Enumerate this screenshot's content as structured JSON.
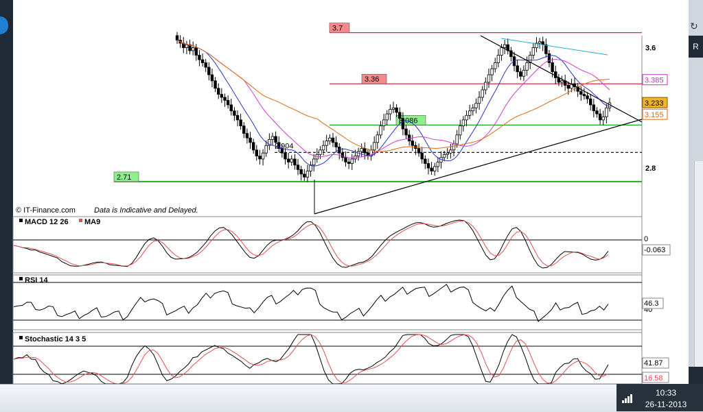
{
  "window": {
    "left_icon": "refresh-icon",
    "right_badge": "R"
  },
  "taskbar": {
    "time": "10:33",
    "date": "26-11-2013",
    "signal_icon": "network-signal-icon"
  },
  "chart_data": {
    "type": "candlestick",
    "copyright": "© IT-Finance.com",
    "disclaimer": "Data is Indicative and Delayed.",
    "price_axis": {
      "ticks": [
        3.6,
        2.8
      ],
      "range": [
        2.55,
        3.68
      ]
    },
    "colors": {
      "resistance": "#e0263a",
      "ma_short": "#2534c8",
      "ma_mid": "#d23ad2",
      "ma_long": "#e06a10",
      "support": "#22aa22",
      "cyan": "#22b0d0",
      "rsi": "#000000",
      "macd_signal": "#e05050"
    },
    "levels": [
      {
        "value": 3.7,
        "label": "3.7",
        "style": "red"
      },
      {
        "value": 3.36,
        "label": "3.36",
        "style": "red"
      },
      {
        "value": 3.086,
        "label": "3.086",
        "style": "green"
      },
      {
        "value": 2.904,
        "label": "2.904",
        "style": "dashed"
      },
      {
        "value": 2.71,
        "label": "2.71",
        "style": "green"
      }
    ],
    "price_tags": [
      {
        "value": 3.385,
        "label": "3.385",
        "style": "magenta"
      },
      {
        "value": 3.233,
        "label": "3.233",
        "style": "current"
      },
      {
        "value": 3.155,
        "label": "3.155",
        "style": "orange"
      }
    ],
    "candles": [
      3.65,
      3.63,
      3.6,
      3.62,
      3.58,
      3.6,
      3.55,
      3.52,
      3.5,
      3.47,
      3.42,
      3.38,
      3.33,
      3.29,
      3.27,
      3.25,
      3.22,
      3.18,
      3.15,
      3.12,
      3.08,
      3.03,
      3.0,
      2.97,
      2.92,
      2.88,
      2.86,
      2.9,
      2.95,
      2.99,
      3.01,
      2.97,
      2.93,
      2.9,
      2.86,
      2.84,
      2.86,
      2.82,
      2.79,
      2.76,
      2.74,
      2.78,
      2.82,
      2.86,
      2.89,
      2.92,
      2.95,
      2.98,
      3.0,
      2.97,
      2.94,
      2.9,
      2.87,
      2.84,
      2.83,
      2.86,
      2.88,
      2.91,
      2.93,
      2.9,
      2.88,
      2.92,
      2.97,
      3.02,
      3.08,
      3.12,
      3.16,
      3.19,
      3.2,
      3.17,
      3.13,
      3.06,
      3.02,
      2.98,
      2.95,
      2.93,
      2.9,
      2.86,
      2.83,
      2.8,
      2.78,
      2.81,
      2.84,
      2.87,
      2.89,
      2.9,
      2.92,
      2.96,
      3.02,
      3.08,
      3.12,
      3.15,
      3.18,
      3.2,
      3.23,
      3.27,
      3.32,
      3.37,
      3.42,
      3.46,
      3.5,
      3.55,
      3.6,
      3.62,
      3.58,
      3.54,
      3.48,
      3.44,
      3.41,
      3.45,
      3.5,
      3.55,
      3.6,
      3.63,
      3.64,
      3.62,
      3.56,
      3.5,
      3.44,
      3.4,
      3.37,
      3.38,
      3.35,
      3.33,
      3.36,
      3.34,
      3.31,
      3.29,
      3.28,
      3.26,
      3.22,
      3.18,
      3.16,
      3.12,
      3.14,
      3.2,
      3.233
    ],
    "macd": {
      "label": "MACD 12 26",
      "signal_label": "MA9",
      "zero_label": "0",
      "value_label": "-0.063",
      "range": [
        -1,
        1
      ]
    },
    "rsi": {
      "label": "RSI 14",
      "value_label": "46.3",
      "level_label": "40",
      "range": [
        0,
        100
      ],
      "levels": [
        70,
        30
      ]
    },
    "stochastic": {
      "label": "Stochastic 14 3 5",
      "k_label": "41.87",
      "d_label": "16.58",
      "range": [
        0,
        100
      ],
      "levels": [
        80,
        50,
        20
      ]
    }
  }
}
